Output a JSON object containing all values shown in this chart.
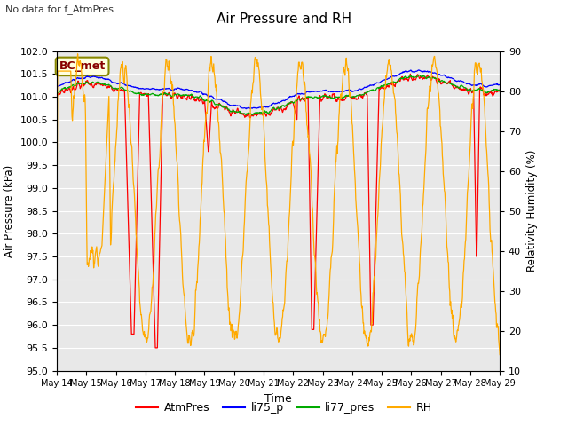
{
  "title": "Air Pressure and RH",
  "subtitle": "No data for f_AtmPres",
  "xlabel": "Time",
  "ylabel_left": "Air Pressure (kPa)",
  "ylabel_right": "Relativity Humidity (%)",
  "annotation": "BC_met",
  "x_tick_labels": [
    "May 14",
    "May 15",
    "May 16",
    "May 17",
    "May 18",
    "May 19",
    "May 20",
    "May 21",
    "May 22",
    "May 23",
    "May 24",
    "May 25",
    "May 26",
    "May 27",
    "May 28",
    "May 29"
  ],
  "ylim_left": [
    95.0,
    102.0
  ],
  "ylim_right": [
    10,
    90
  ],
  "yticks_left": [
    95.0,
    95.5,
    96.0,
    96.5,
    97.0,
    97.5,
    98.0,
    98.5,
    99.0,
    99.5,
    100.0,
    100.5,
    101.0,
    101.5,
    102.0
  ],
  "yticks_right": [
    10,
    20,
    30,
    40,
    50,
    60,
    70,
    80,
    90
  ],
  "legend_labels": [
    "AtmPres",
    "li75_p",
    "li77_pres",
    "RH"
  ],
  "legend_colors": [
    "#ff0000",
    "#0000ff",
    "#00aa00",
    "#ffaa00"
  ],
  "plot_bg_color": "#e8e8e8",
  "grid_color": "#ffffff",
  "annotation_facecolor": "#ffffe0",
  "annotation_edgecolor": "#888800",
  "annotation_textcolor": "#880000"
}
